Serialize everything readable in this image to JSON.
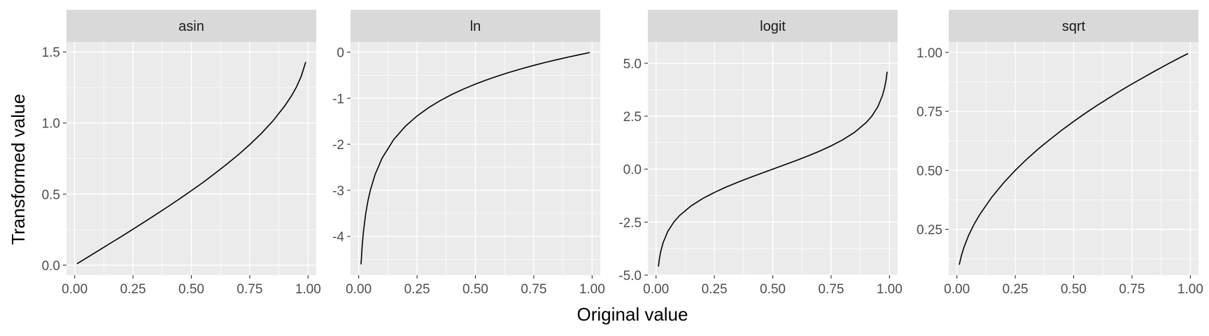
{
  "chart_data": {
    "type": "line",
    "xlabel": "Original value",
    "ylabel": "Transformed value",
    "x_ticks": [
      "0.00",
      "0.25",
      "0.50",
      "0.75",
      "1.00"
    ],
    "xlim": [
      -0.035,
      1.035
    ],
    "panels": [
      {
        "name": "asin",
        "ylim": [
          -0.07,
          1.57
        ],
        "y_ticks": [
          0.0,
          0.5,
          1.0,
          1.5
        ],
        "y_tick_labels": [
          "0.0",
          "0.5",
          "1.0",
          "1.5"
        ],
        "x": [
          0.01,
          0.05,
          0.1,
          0.15,
          0.2,
          0.25,
          0.3,
          0.35,
          0.4,
          0.45,
          0.5,
          0.55,
          0.6,
          0.65,
          0.7,
          0.75,
          0.8,
          0.85,
          0.9,
          0.93,
          0.95,
          0.97,
          0.99
        ],
        "y": [
          0.01,
          0.05,
          0.1,
          0.151,
          0.201,
          0.253,
          0.305,
          0.358,
          0.412,
          0.467,
          0.524,
          0.582,
          0.644,
          0.708,
          0.775,
          0.848,
          0.927,
          1.016,
          1.12,
          1.194,
          1.253,
          1.326,
          1.429
        ]
      },
      {
        "name": "ln",
        "ylim": [
          -4.84,
          0.22
        ],
        "y_ticks": [
          -4,
          -3,
          -2,
          -1,
          0
        ],
        "y_tick_labels": [
          "-4",
          "-3",
          "-2",
          "-1",
          "0"
        ],
        "x": [
          0.01,
          0.015,
          0.02,
          0.03,
          0.04,
          0.05,
          0.07,
          0.1,
          0.15,
          0.2,
          0.25,
          0.3,
          0.35,
          0.4,
          0.45,
          0.5,
          0.55,
          0.6,
          0.65,
          0.7,
          0.75,
          0.8,
          0.85,
          0.9,
          0.95,
          0.99
        ],
        "y": [
          -4.605,
          -4.2,
          -3.912,
          -3.507,
          -3.219,
          -2.996,
          -2.659,
          -2.303,
          -1.897,
          -1.609,
          -1.386,
          -1.204,
          -1.05,
          -0.916,
          -0.799,
          -0.693,
          -0.598,
          -0.511,
          -0.431,
          -0.357,
          -0.288,
          -0.223,
          -0.163,
          -0.105,
          -0.051,
          -0.01
        ]
      },
      {
        "name": "logit",
        "ylim": [
          -5.0,
          6.0
        ],
        "y_ticks": [
          -5.0,
          -2.5,
          0.0,
          2.5,
          5.0
        ],
        "y_tick_labels": [
          "-5.0",
          "-2.5",
          "0.0",
          "2.5",
          "5.0"
        ],
        "x": [
          0.01,
          0.015,
          0.02,
          0.03,
          0.05,
          0.075,
          0.1,
          0.15,
          0.2,
          0.25,
          0.3,
          0.35,
          0.4,
          0.45,
          0.5,
          0.55,
          0.6,
          0.65,
          0.7,
          0.75,
          0.8,
          0.85,
          0.9,
          0.925,
          0.95,
          0.97,
          0.98,
          0.985,
          0.99
        ],
        "y": [
          -4.595,
          -4.185,
          -3.892,
          -3.476,
          -2.944,
          -2.512,
          -2.197,
          -1.735,
          -1.386,
          -1.099,
          -0.847,
          -0.619,
          -0.405,
          -0.201,
          0.0,
          0.201,
          0.405,
          0.619,
          0.847,
          1.099,
          1.386,
          1.735,
          2.197,
          2.512,
          2.944,
          3.476,
          3.892,
          4.185,
          4.595
        ]
      },
      {
        "name": "sqrt",
        "ylim": [
          0.056,
          1.044
        ],
        "y_ticks": [
          0.25,
          0.5,
          0.75,
          1.0
        ],
        "y_tick_labels": [
          "0.25",
          "0.50",
          "0.75",
          "1.00"
        ],
        "x": [
          0.01,
          0.02,
          0.03,
          0.05,
          0.075,
          0.1,
          0.15,
          0.2,
          0.25,
          0.3,
          0.35,
          0.4,
          0.45,
          0.5,
          0.55,
          0.6,
          0.65,
          0.7,
          0.75,
          0.8,
          0.85,
          0.9,
          0.95,
          0.99
        ],
        "y": [
          0.1,
          0.141,
          0.173,
          0.224,
          0.274,
          0.316,
          0.387,
          0.447,
          0.5,
          0.548,
          0.592,
          0.632,
          0.671,
          0.707,
          0.742,
          0.775,
          0.806,
          0.837,
          0.866,
          0.894,
          0.922,
          0.949,
          0.975,
          0.995
        ]
      }
    ]
  }
}
